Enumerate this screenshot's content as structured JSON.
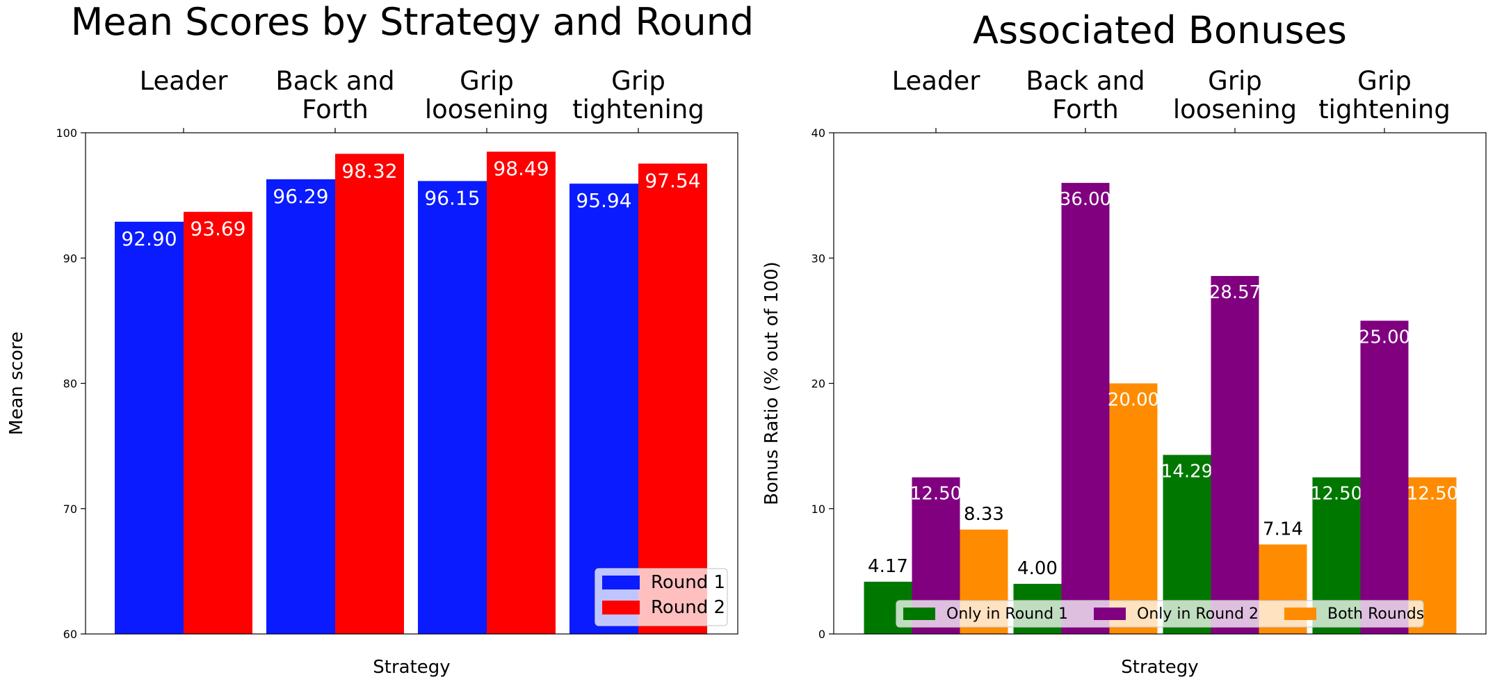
{
  "chart_data": [
    {
      "type": "bar",
      "title": "Mean Scores by Strategy and Round",
      "xlabel": "Strategy",
      "ylabel": "Mean score",
      "ylim": [
        60,
        100
      ],
      "yticks": [
        "60",
        "70",
        "80",
        "90",
        "100"
      ],
      "categories": [
        "Leader",
        "Back and\nForth",
        "Grip\nloosening",
        "Grip\ntightening"
      ],
      "series": [
        {
          "name": "Round 1",
          "color": "#0a1bff",
          "values": [
            92.9,
            96.29,
            96.15,
            95.94
          ],
          "labels": [
            "92.90",
            "96.29",
            "96.15",
            "95.94"
          ]
        },
        {
          "name": "Round 2",
          "color": "#ff0000",
          "values": [
            93.69,
            98.32,
            98.49,
            97.54
          ],
          "labels": [
            "93.69",
            "98.32",
            "98.49",
            "97.54"
          ]
        }
      ],
      "legend_position": "lower-right",
      "grid": false
    },
    {
      "type": "bar",
      "title": "Associated Bonuses",
      "xlabel": "Strategy",
      "ylabel": "Bonus Ratio (% out of 100)",
      "ylim": [
        0,
        40
      ],
      "yticks": [
        "0",
        "10",
        "20",
        "30",
        "40"
      ],
      "categories": [
        "Leader",
        "Back and\nForth",
        "Grip\nloosening",
        "Grip\ntightening"
      ],
      "series": [
        {
          "name": "Only in Round 1",
          "color": "#007800",
          "values": [
            4.17,
            4.0,
            14.29,
            12.5
          ],
          "labels": [
            "4.17",
            "4.00",
            "14.29",
            "12.50"
          ]
        },
        {
          "name": "Only in Round 2",
          "color": "#800080",
          "values": [
            12.5,
            36.0,
            28.57,
            25.0
          ],
          "labels": [
            "12.50",
            "36.00",
            "28.57",
            "25.00"
          ]
        },
        {
          "name": "Both Rounds",
          "color": "#ff8c00",
          "values": [
            8.33,
            20.0,
            7.14,
            12.5
          ],
          "labels": [
            "8.33",
            "20.00",
            "7.14",
            "12.50"
          ]
        }
      ],
      "legend_position": "lower-center",
      "grid": false
    }
  ]
}
